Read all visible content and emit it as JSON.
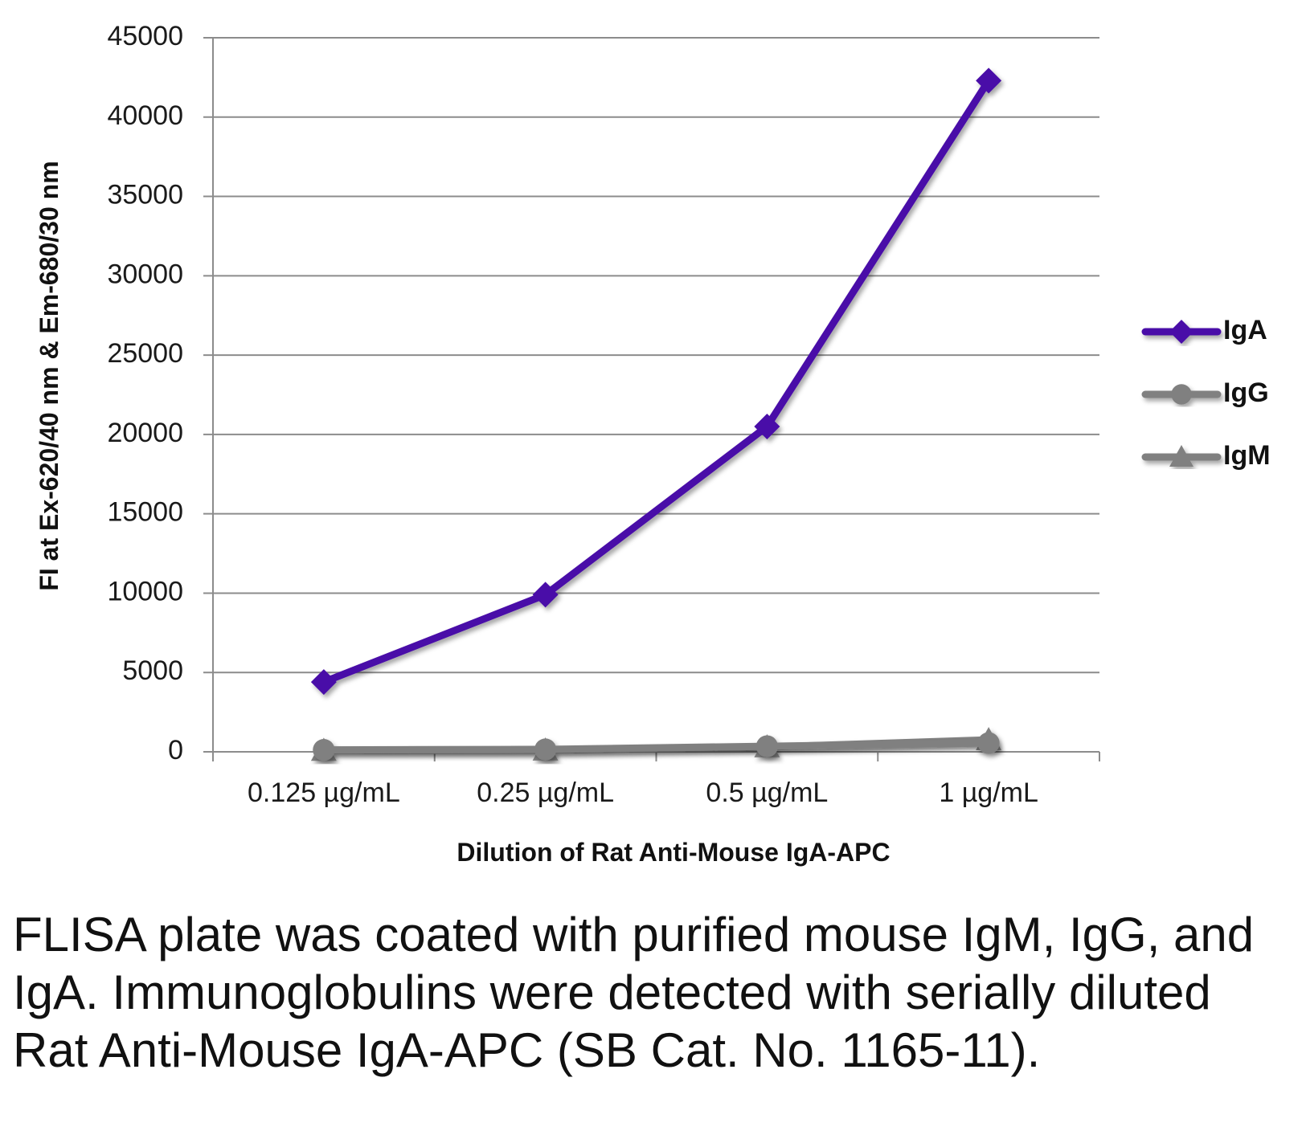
{
  "chart_data": {
    "type": "line",
    "title": "",
    "xlabel": "Dilution of Rat Anti-Mouse IgA-APC",
    "ylabel": "FI at Ex-620/40 nm & Em-680/30 nm",
    "categories": [
      "0.125 µg/mL",
      "0.25 µg/mL",
      "0.5 µg/mL",
      "1 µg/mL"
    ],
    "ylim": [
      0,
      45000
    ],
    "yticks": [
      0,
      5000,
      10000,
      15000,
      20000,
      25000,
      30000,
      35000,
      40000,
      45000
    ],
    "grid": true,
    "legend_position": "right",
    "series": [
      {
        "name": "IgA",
        "values": [
          4400,
          9900,
          20500,
          42300
        ],
        "color": "#4a0fa8",
        "marker": "diamond"
      },
      {
        "name": "IgG",
        "values": [
          120,
          150,
          350,
          550
        ],
        "color": "#808080",
        "marker": "circle"
      },
      {
        "name": "IgM",
        "values": [
          80,
          100,
          300,
          750
        ],
        "color": "#808080",
        "marker": "triangle"
      }
    ]
  },
  "caption": "FLISA plate was coated with purified mouse IgM, IgG, and IgA.  Immunoglobulins were detected with serially diluted Rat Anti-Mouse IgA-APC (SB Cat. No. 1165-11)."
}
